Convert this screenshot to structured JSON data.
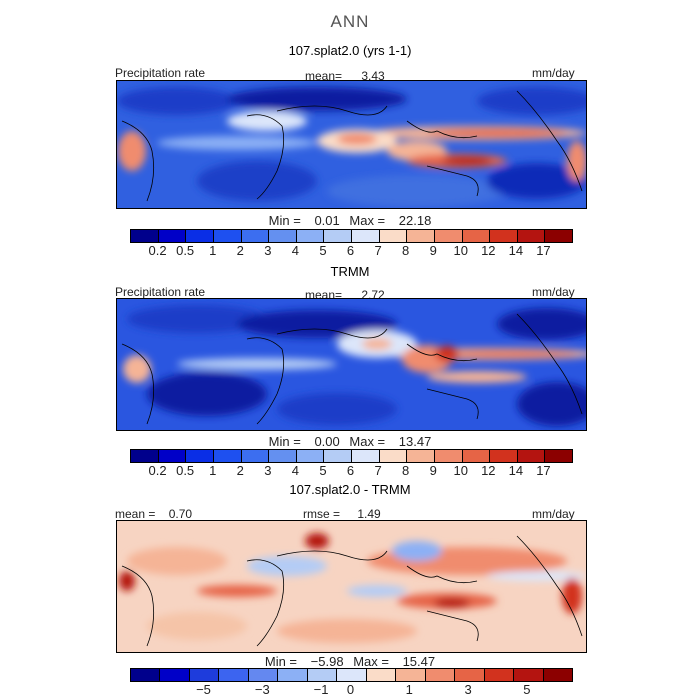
{
  "page_title": "ANN",
  "panel1": {
    "subtitle": "107.splat2.0 (yrs 1-1)",
    "left_label": "Precipitation rate",
    "mean_label": "mean=",
    "mean_value": "3.43",
    "units": "mm/day",
    "min_label": "Min =",
    "min_value": "0.01",
    "max_label": "Max =",
    "max_value": "22.18"
  },
  "panel2": {
    "subtitle": "TRMM",
    "left_label": "Precipitation rate",
    "mean_label": "mean=",
    "mean_value": "2.72",
    "units": "mm/day",
    "min_label": "Min =",
    "min_value": "0.00",
    "max_label": "Max =",
    "max_value": "13.47"
  },
  "panel3": {
    "subtitle": "107.splat2.0 - TRMM",
    "mean_label": "mean =",
    "mean_value": "0.70",
    "rmse_label": "rmse =",
    "rmse_value": "1.49",
    "units": "mm/day",
    "min_label": "Min =",
    "min_value": "−5.98",
    "max_label": "Max =",
    "max_value": "15.47"
  },
  "colorbar_precip": {
    "colors": [
      "#00008c",
      "#0000c8",
      "#0a2ee6",
      "#1e50f0",
      "#3c6ef0",
      "#6490f0",
      "#8cb0f5",
      "#b4ccf5",
      "#dce6fa",
      "#fadcc8",
      "#f5b496",
      "#f08c6e",
      "#e66446",
      "#d2321e",
      "#b41410",
      "#8c0000"
    ],
    "tick_labels": [
      "0.2",
      "0.5",
      "1",
      "2",
      "3",
      "4",
      "5",
      "6",
      "7",
      "8",
      "9",
      "10",
      "12",
      "14",
      "17"
    ]
  },
  "colorbar_diff": {
    "colors": [
      "#00008c",
      "#0000c8",
      "#1e3cdc",
      "#3c64f0",
      "#6488f0",
      "#8cb0f5",
      "#b4ccf5",
      "#dce6fa",
      "#fadcc8",
      "#f5b496",
      "#f08c6e",
      "#e66446",
      "#d2321e",
      "#b41410",
      "#8c0000"
    ],
    "tick_labels": [
      "−5",
      "−3",
      "−1",
      "0",
      "1",
      "3",
      "5"
    ]
  }
}
